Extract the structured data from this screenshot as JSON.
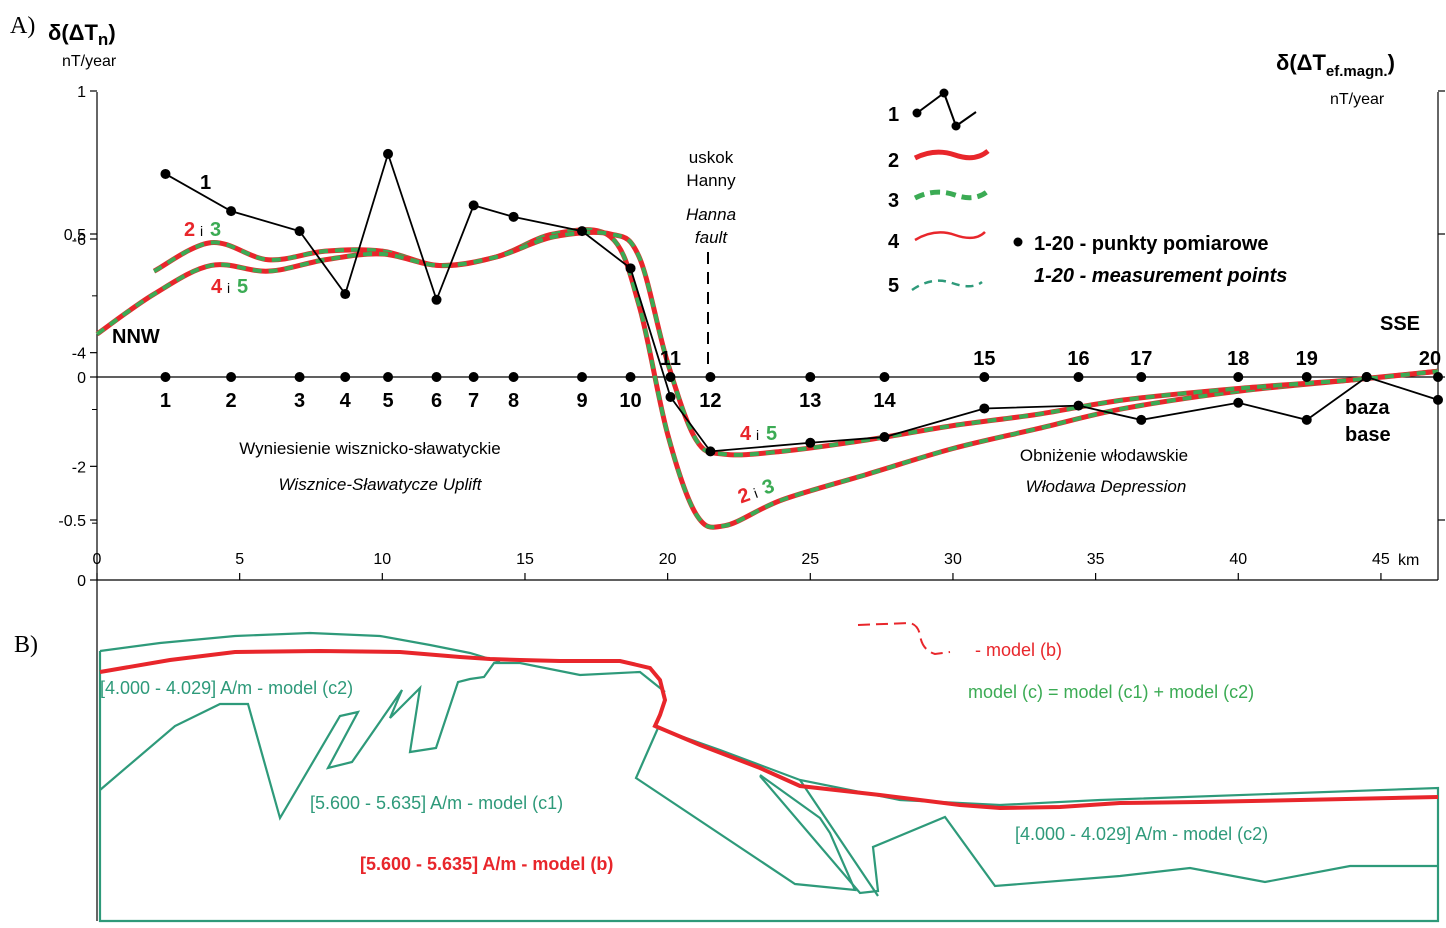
{
  "colors": {
    "black": "#000000",
    "red": "#e8262b",
    "green": "#3bab54",
    "teal": "#2e9a7a"
  },
  "panelA": {
    "panel_label": "A)",
    "left_axis_title": "δ(ΔT",
    "left_axis_sub": "n",
    "left_axis_close": ")",
    "left_axis_unit": "nT/year",
    "right_axis_title": "δ(ΔT",
    "right_axis_sub": "ef.magn.",
    "right_axis_close": ")",
    "right_axis_unit": "nT/year",
    "km_label": "km",
    "nnw": "NNW",
    "sse": "SSE",
    "fault_pl_1": "uskok",
    "fault_pl_2": "Hanny",
    "fault_en_1": "Hanna",
    "fault_en_2": "fault",
    "uplift_pl": "Wyniesienie wisznicko-sławatyckie",
    "uplift_en": "Wisznice-Sławatycze Uplift",
    "depression_pl": "Obniżenie włodawskie",
    "depression_en": "Włodawa Depression",
    "base_pl": "baza",
    "base_en": "base",
    "curve_label_1": "1",
    "label_2i3_a": "2",
    "label_i": "i",
    "label_2i3_b": "3",
    "label_4i5_a": "4",
    "label_4i5_b": "5",
    "legend": {
      "items": [
        "1",
        "2",
        "3",
        "4",
        "5"
      ],
      "points_pl": "1-20 -  punkty pomiarowe",
      "points_en": "1-20 -  measurement points"
    }
  },
  "panelB": {
    "panel_label": "B)",
    "model_b_legend": "- model (b)",
    "model_c_def": "model (c) = model (c1) + model (c2)",
    "label_c2_top": "[4.000 - 4.029] A/m - model (c2)",
    "label_c1": "[5.600 - 5.635] A/m - model (c1)",
    "label_b": "[5.600 - 5.635] A/m - model (b)",
    "label_c2_right": "[4.000 - 4.029] A/m - model (c2)"
  },
  "chart_data": [
    {
      "type": "line",
      "title": "A)",
      "xlabel": "km",
      "ylabel": "δ(ΔTn) nT/year",
      "xlim": [
        0,
        47
      ],
      "ylim": [
        -0.6,
        1
      ],
      "x_ticks": [
        0,
        5,
        10,
        15,
        20,
        25,
        30,
        35,
        40,
        45
      ],
      "y_ticks": [
        1,
        0.5,
        0,
        -0.5
      ],
      "y_tick_labels": [
        "1",
        "0.5",
        "0",
        "-0.5"
      ],
      "measurement_points": {
        "labels": [
          "1",
          "2",
          "3",
          "4",
          "5",
          "6",
          "7",
          "8",
          "9",
          "10",
          "11",
          "12",
          "13",
          "14",
          "15",
          "16",
          "17",
          "18",
          "19",
          "20"
        ],
        "x": [
          2.4,
          4.7,
          7.1,
          8.7,
          10.2,
          11.9,
          13.2,
          14.6,
          17.0,
          18.7,
          20.1,
          21.5,
          25.0,
          27.6,
          31.1,
          34.4,
          36.6,
          40.0,
          42.4,
          47.0
        ],
        "base_x": 44.5
      },
      "series": [
        {
          "name": "1",
          "x": [
            2.4,
            4.7,
            7.1,
            8.7,
            10.2,
            11.9,
            13.2,
            14.6,
            17.0,
            18.7,
            20.1,
            21.5,
            25.0,
            27.6,
            31.1,
            34.4,
            36.6,
            40.0,
            42.4,
            44.5,
            47.0
          ],
          "values": [
            0.71,
            0.58,
            0.51,
            0.29,
            0.78,
            0.27,
            0.6,
            0.56,
            0.51,
            0.38,
            -0.07,
            -0.26,
            -0.23,
            -0.21,
            -0.11,
            -0.1,
            -0.15,
            -0.09,
            -0.15,
            0.0,
            -0.08
          ]
        },
        {
          "name": "2",
          "x": [
            2,
            4,
            6,
            8,
            10,
            12,
            14,
            16,
            18,
            19,
            20,
            21,
            22,
            24,
            27,
            30,
            33,
            36,
            40,
            44,
            47
          ],
          "values": [
            0.37,
            0.47,
            0.41,
            0.44,
            0.44,
            0.39,
            0.42,
            0.5,
            0.49,
            0.25,
            -0.2,
            -0.48,
            -0.52,
            -0.43,
            -0.34,
            -0.25,
            -0.18,
            -0.11,
            -0.05,
            -0.01,
            0.02
          ]
        },
        {
          "name": "3",
          "x": [
            2,
            4,
            6,
            8,
            10,
            12,
            14,
            16,
            18,
            19,
            20,
            21,
            22,
            24,
            27,
            30,
            33,
            36,
            40,
            44,
            47
          ],
          "values": [
            0.37,
            0.47,
            0.41,
            0.44,
            0.44,
            0.39,
            0.42,
            0.5,
            0.49,
            0.25,
            -0.2,
            -0.48,
            -0.52,
            -0.43,
            -0.34,
            -0.25,
            -0.18,
            -0.11,
            -0.05,
            -0.01,
            0.02
          ]
        },
        {
          "name": "4",
          "x": [
            0,
            2,
            4,
            6,
            8,
            10,
            12,
            14,
            16,
            18,
            19,
            20,
            21,
            22,
            24,
            27,
            30,
            33,
            36,
            40,
            44,
            47
          ],
          "values": [
            0.15,
            0.29,
            0.39,
            0.37,
            0.41,
            0.43,
            0.39,
            0.42,
            0.49,
            0.5,
            0.42,
            0.05,
            -0.22,
            -0.27,
            -0.26,
            -0.22,
            -0.17,
            -0.13,
            -0.08,
            -0.04,
            -0.01,
            0.02
          ]
        },
        {
          "name": "5",
          "x": [
            0,
            2,
            4,
            6,
            8,
            10,
            12,
            14,
            16,
            18,
            19,
            20,
            21,
            22,
            24,
            27,
            30,
            33,
            36,
            40,
            44,
            47
          ],
          "values": [
            0.15,
            0.29,
            0.39,
            0.37,
            0.41,
            0.43,
            0.39,
            0.42,
            0.49,
            0.5,
            0.42,
            0.05,
            -0.22,
            -0.27,
            -0.26,
            -0.22,
            -0.17,
            -0.13,
            -0.08,
            -0.04,
            -0.01,
            0.02
          ]
        }
      ]
    },
    {
      "type": "line",
      "title": "B)",
      "xlim": [
        0,
        47
      ],
      "ylim": [
        -6,
        0
      ],
      "y_ticks": [
        0,
        -2,
        -4,
        -6
      ],
      "y_tick_labels": [
        "0",
        "-2",
        "-4",
        "-6"
      ],
      "series": [
        {
          "name": "model (b)",
          "x": [
            0,
            5,
            10,
            14,
            18,
            19.5,
            19.8,
            19.5,
            22,
            25,
            30,
            35,
            40,
            47
          ],
          "values": [
            -1.6,
            -1.3,
            -1.3,
            -1.45,
            -1.5,
            -1.75,
            -2.2,
            -2.6,
            -3.05,
            -3.55,
            -3.85,
            -3.9,
            -3.85,
            -3.8
          ]
        },
        {
          "name": "model (c)",
          "x": [
            0,
            5,
            8,
            10,
            14,
            18,
            19.5,
            22,
            25,
            30,
            35,
            40,
            47
          ],
          "values": [
            -1.3,
            -1.05,
            -1.0,
            -1.05,
            -1.45,
            -1.6,
            -2.6,
            -3.0,
            -3.5,
            -3.85,
            -3.9,
            -3.8,
            -3.7
          ]
        }
      ]
    }
  ]
}
